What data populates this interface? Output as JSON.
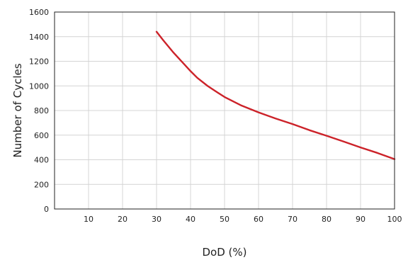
{
  "chart_data": {
    "type": "line",
    "title": "",
    "xlabel": "DoD (%)",
    "ylabel": "Number of Cycles",
    "xlim": [
      0,
      100
    ],
    "ylim": [
      0,
      1600
    ],
    "x_ticks": [
      "10",
      "20",
      "30",
      "40",
      "50",
      "60",
      "70",
      "80",
      "90",
      "100"
    ],
    "y_ticks": [
      "0",
      "200",
      "400",
      "600",
      "800",
      "1000",
      "1200",
      "1400",
      "1600"
    ],
    "grid": true,
    "legend": "none",
    "series": [
      {
        "color": "#cc2229",
        "x": [
          30,
          32,
          35,
          38,
          40,
          42,
          45,
          48,
          50,
          55,
          60,
          65,
          70,
          75,
          80,
          85,
          90,
          95,
          100
        ],
        "y": [
          1440,
          1370,
          1270,
          1180,
          1120,
          1065,
          1000,
          945,
          910,
          840,
          785,
          735,
          690,
          640,
          595,
          548,
          500,
          455,
          405
        ]
      }
    ]
  }
}
